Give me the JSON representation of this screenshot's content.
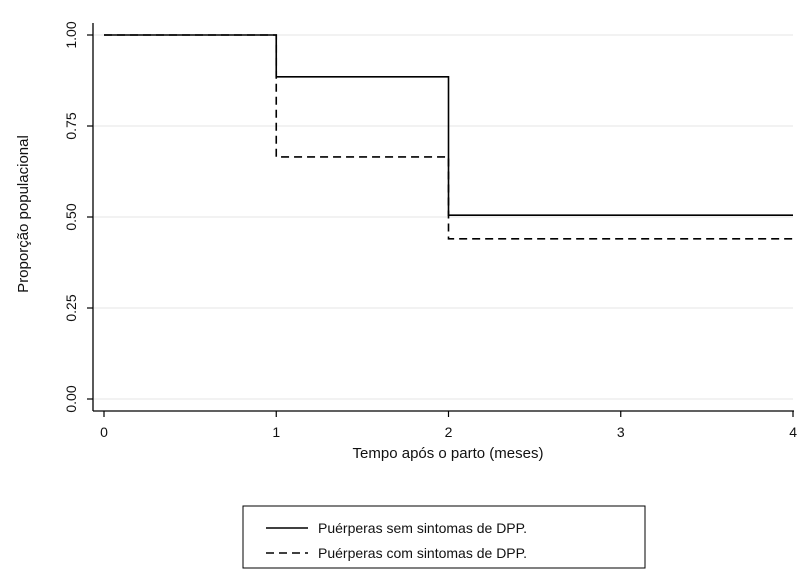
{
  "chart_data": {
    "type": "line",
    "subtype": "step",
    "title": "",
    "xlabel": "Tempo após o parto (meses)",
    "ylabel": "Proporção populacional",
    "xlim": [
      0,
      4
    ],
    "ylim": [
      0,
      1
    ],
    "x_ticks": [
      "0",
      "1",
      "2",
      "3",
      "4"
    ],
    "y_ticks": [
      "0.00",
      "0.25",
      "0.50",
      "0.75",
      "1.00"
    ],
    "grid": "horizontal",
    "legend_position": "bottom-center",
    "series": [
      {
        "name": "Puérperas sem sintomas de DPP.",
        "line_style": "solid",
        "color": "#000000",
        "points": [
          [
            0,
            1.0
          ],
          [
            1,
            1.0
          ],
          [
            1,
            0.885
          ],
          [
            2,
            0.885
          ],
          [
            2,
            0.505
          ],
          [
            4,
            0.505
          ]
        ]
      },
      {
        "name": "Puérperas com sintomas de DPP.",
        "line_style": "dashed",
        "color": "#000000",
        "points": [
          [
            0,
            1.0
          ],
          [
            1,
            1.0
          ],
          [
            1,
            0.665
          ],
          [
            2,
            0.665
          ],
          [
            2,
            0.44
          ],
          [
            4,
            0.44
          ]
        ]
      }
    ]
  }
}
